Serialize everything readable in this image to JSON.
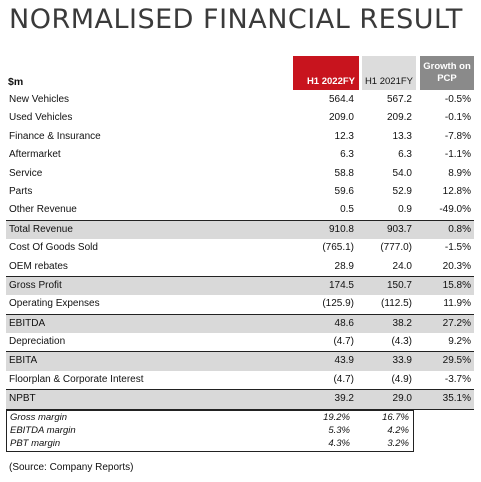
{
  "title": "NORMALISED FINANCIAL RESULT",
  "header": {
    "unit": "$m",
    "col1": "H1 2022FY",
    "col2": "H1 2021FY",
    "col3": "Growth on PCP"
  },
  "rows": [
    {
      "label": "New Vehicles",
      "v1": "564.4",
      "v2": "567.2",
      "v3": "-0.5%"
    },
    {
      "label": "Used Vehicles",
      "v1": "209.0",
      "v2": "209.2",
      "v3": "-0.1%"
    },
    {
      "label": "Finance & Insurance",
      "v1": "12.3",
      "v2": "13.3",
      "v3": "-7.8%"
    },
    {
      "label": "Aftermarket",
      "v1": "6.3",
      "v2": "6.3",
      "v3": "-1.1%"
    },
    {
      "label": "Service",
      "v1": "58.8",
      "v2": "54.0",
      "v3": "8.9%"
    },
    {
      "label": "Parts",
      "v1": "59.6",
      "v2": "52.9",
      "v3": "12.8%"
    },
    {
      "label": "Other Revenue",
      "v1": "0.5",
      "v2": "0.9",
      "v3": "-49.0%"
    },
    {
      "label": "Total Revenue",
      "v1": "910.8",
      "v2": "903.7",
      "v3": "0.8%"
    },
    {
      "label": "Cost Of Goods Sold",
      "v1": "(765.1)",
      "v2": "(777.0)",
      "v3": "-1.5%"
    },
    {
      "label": "OEM rebates",
      "v1": "28.9",
      "v2": "24.0",
      "v3": "20.3%"
    },
    {
      "label": "Gross Profit",
      "v1": "174.5",
      "v2": "150.7",
      "v3": "15.8%"
    },
    {
      "label": "Operating Expenses",
      "v1": "(125.9)",
      "v2": "(112.5)",
      "v3": "11.9%"
    },
    {
      "label": "EBITDA",
      "v1": "48.6",
      "v2": "38.2",
      "v3": "27.2%"
    },
    {
      "label": "Depreciation",
      "v1": "(4.7)",
      "v2": "(4.3)",
      "v3": "9.2%"
    },
    {
      "label": "EBITA",
      "v1": "43.9",
      "v2": "33.9",
      "v3": "29.5%"
    },
    {
      "label": "Floorplan & Corporate Interest",
      "v1": "(4.7)",
      "v2": "(4.9)",
      "v3": "-3.7%"
    },
    {
      "label": "NPBT",
      "v1": "39.2",
      "v2": "29.0",
      "v3": "35.1%"
    }
  ],
  "margins": [
    {
      "label": "Gross margin",
      "v1": "19.2%",
      "v2": "16.7%"
    },
    {
      "label": "EBITDA margin",
      "v1": "5.3%",
      "v2": "4.2%"
    },
    {
      "label": "PBT margin",
      "v1": "4.3%",
      "v2": "3.2%"
    }
  ],
  "source": "(Source: Company Reports)"
}
